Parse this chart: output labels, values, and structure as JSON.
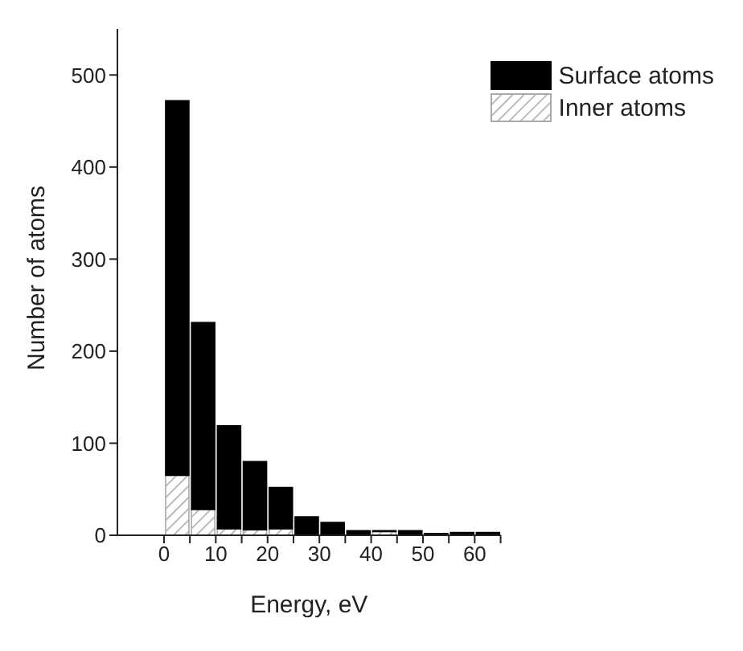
{
  "chart_data": {
    "type": "bar",
    "xlabel": "Energy, eV",
    "ylabel": "Number of atoms",
    "x": [
      2.5,
      7.5,
      12.5,
      17.5,
      22.5,
      27.5,
      32.5,
      37.5,
      42.5,
      47.5,
      52.5,
      57.5,
      62.5
    ],
    "stacked": true,
    "series": [
      {
        "name": "Inner atoms",
        "color": "#aaaaaa",
        "values": [
          65,
          28,
          7,
          6,
          7,
          null,
          null,
          null,
          4,
          null,
          0,
          0,
          0
        ]
      },
      {
        "name": "Surface atoms",
        "color": "#000000",
        "values": [
          407,
          203,
          112,
          74,
          45,
          20,
          14,
          5,
          1,
          5,
          2,
          3,
          3
        ]
      }
    ],
    "xlim": [
      -9,
      65
    ],
    "xticks": [
      0,
      {
        "value": 5,
        "label": null
      },
      10,
      {
        "value": 15,
        "label": null
      },
      20,
      {
        "value": 25,
        "label": null
      },
      30,
      {
        "value": 35,
        "label": null
      },
      40,
      {
        "value": 45,
        "label": null
      },
      50,
      {
        "value": 55,
        "label": null
      },
      60,
      {
        "value": 65,
        "label": null
      }
    ],
    "ylim": [
      0,
      550
    ],
    "yticks": [
      0,
      100,
      200,
      300,
      400,
      500
    ],
    "grid": false,
    "legend": "top right"
  }
}
